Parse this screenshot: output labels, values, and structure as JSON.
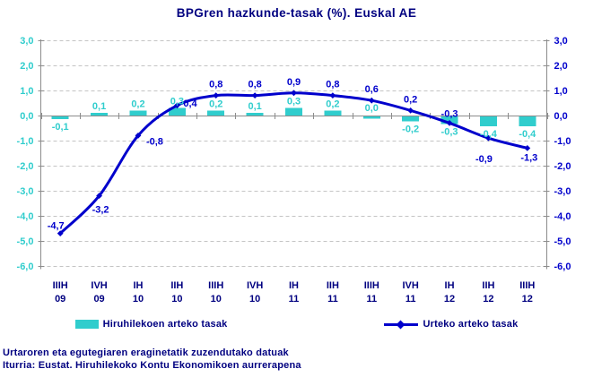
{
  "title": "BPGren hazkunde-tasak (%). Euskal AE",
  "footer": {
    "line1": "Urtaroren eta egutegiaren eraginetatik zuzendutako datuak",
    "line2": "Iturria: Eustat. Hiruhilekoko Kontu Ekonomikoen aurrerapena"
  },
  "colors": {
    "bar": "#30CDCD",
    "bar_label": "#30CDCD",
    "line": "#0000CC",
    "line_label": "#0000CC",
    "axis_left_labels": "#30CDCD",
    "axis_right_labels": "#0000CC",
    "category_labels": "#000080",
    "title_text": "#000080",
    "grid": "#C4C4C4",
    "axis": "#8C8C8C"
  },
  "chart_data": {
    "type": "bar+line",
    "title": "BPGren hazkunde-tasak (%). Euskal AE",
    "categories": [
      {
        "q": "IIIH",
        "y": "09"
      },
      {
        "q": "IVH",
        "y": "09"
      },
      {
        "q": "IH",
        "y": "10"
      },
      {
        "q": "IIH",
        "y": "10"
      },
      {
        "q": "IIIH",
        "y": "10"
      },
      {
        "q": "IVH",
        "y": "10"
      },
      {
        "q": "IH",
        "y": "11"
      },
      {
        "q": "IIH",
        "y": "11"
      },
      {
        "q": "IIIH",
        "y": "11"
      },
      {
        "q": "IVH",
        "y": "11"
      },
      {
        "q": "IH",
        "y": "12"
      },
      {
        "q": "IIH",
        "y": "12"
      },
      {
        "q": "IIIH",
        "y": "12"
      }
    ],
    "series": [
      {
        "name": "Hiruhilekoen arteko tasak",
        "type": "bar",
        "values": [
          -0.1,
          0.1,
          0.2,
          0.3,
          0.2,
          0.1,
          0.3,
          0.2,
          0.0,
          -0.2,
          -0.3,
          -0.4,
          -0.4
        ],
        "labels": [
          "-0,1",
          "0,1",
          "0,2",
          "0,3",
          "0,2",
          "0,1",
          "0,3",
          "0,2",
          "0,0",
          "-0,2",
          "-0,3",
          "-0,4",
          "-0,4"
        ]
      },
      {
        "name": "Urteko arteko tasak",
        "type": "line",
        "values": [
          -4.7,
          -3.2,
          -0.8,
          0.4,
          0.8,
          0.8,
          0.9,
          0.8,
          0.6,
          0.2,
          -0.3,
          -0.9,
          -1.3
        ],
        "labels": [
          "-4,7",
          "-3,2",
          "-0,8",
          "0,4",
          "0,8",
          "0,8",
          "0,9",
          "0,8",
          "0,6",
          "0,2",
          "-0,3",
          "-0,9",
          "-1,3"
        ]
      }
    ],
    "ylim": [
      -6,
      3
    ],
    "y_ticks": [
      3,
      2,
      1,
      0,
      -1,
      -2,
      -3,
      -4,
      -5,
      -6
    ],
    "y_tick_labels": [
      "3,0",
      "2,0",
      "1,0",
      "0,0",
      "-1,0",
      "-2,0",
      "-3,0",
      "-4,0",
      "-5,0",
      "-6,0"
    ],
    "grid": "horizontal-dashed",
    "legend_position": "bottom"
  }
}
